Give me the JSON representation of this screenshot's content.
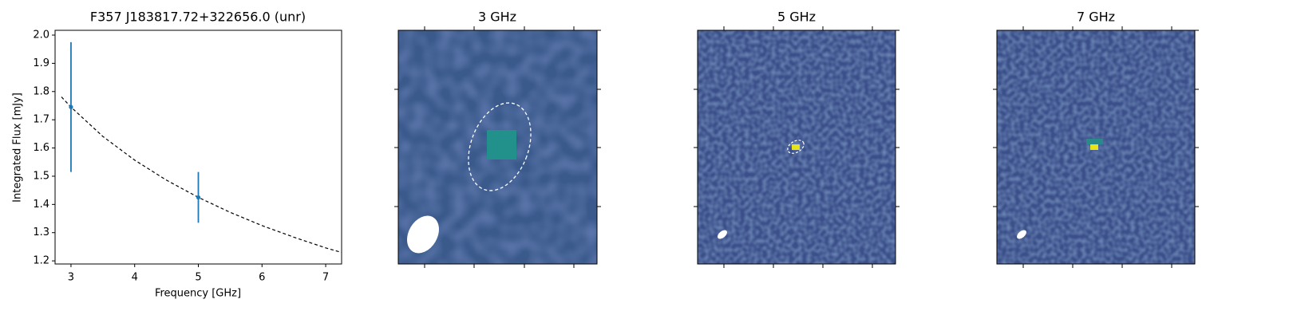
{
  "chart_data": [
    {
      "type": "errorbar",
      "title": "F357 J183817.72+322656.0 (unr)",
      "x_label": "Frequency [GHz]",
      "y_label": "Integrated Flux [mJy]",
      "series": [
        {
          "x": [
            3,
            5
          ],
          "values": [
            1.745,
            1.425
          ],
          "errors": [
            0.23,
            0.09
          ],
          "color": "#1f77b4"
        }
      ],
      "model": {
        "x": [
          2.85,
          3,
          3.5,
          4,
          4.5,
          5,
          5.5,
          6,
          6.5,
          7,
          7.25
        ],
        "values": [
          1.781,
          1.745,
          1.641,
          1.557,
          1.486,
          1.425,
          1.372,
          1.325,
          1.284,
          1.246,
          1.23
        ],
        "color": "#000000",
        "style": "dashed"
      },
      "xlim": [
        2.75,
        7.25
      ],
      "ylim": [
        1.189,
        2.017
      ],
      "xticks": [
        3,
        4,
        5,
        6,
        7
      ],
      "yticks": [
        1.2,
        1.3,
        1.4,
        1.5,
        1.6,
        1.7,
        1.8,
        1.9,
        {
          "value": 2,
          "label": "2.0"
        }
      ]
    },
    {
      "type": "image",
      "title": "3 GHz"
    },
    {
      "type": "image",
      "title": "5 GHz"
    },
    {
      "type": "image",
      "title": "7 GHz"
    }
  ]
}
